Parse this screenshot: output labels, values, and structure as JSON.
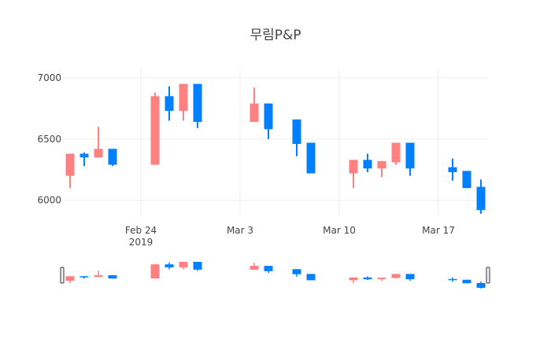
{
  "chart_data": {
    "type": "candlestick",
    "title": "무림P&P",
    "x_ticks": [
      {
        "date": "2019-02-24",
        "label": "Feb 24",
        "sublabel": "2019"
      },
      {
        "date": "2019-03-03",
        "label": "Mar 3"
      },
      {
        "date": "2019-03-10",
        "label": "Mar 10"
      },
      {
        "date": "2019-03-17",
        "label": "Mar 17"
      }
    ],
    "y_ticks": [
      6000,
      6500,
      7000
    ],
    "ylim": [
      5870,
      7070
    ],
    "xlim": [
      "2019-02-18T12:00",
      "2019-03-20T12:00"
    ],
    "grid": true,
    "rangeslider": true,
    "colors": {
      "increasing": "#FF8080",
      "decreasing": "#0080FF"
    },
    "candles": [
      {
        "date": "2019-02-19",
        "open": 6200,
        "high": 6380,
        "low": 6100,
        "close": 6380
      },
      {
        "date": "2019-02-20",
        "open": 6380,
        "high": 6390,
        "low": 6280,
        "close": 6350
      },
      {
        "date": "2019-02-21",
        "open": 6350,
        "high": 6600,
        "low": 6350,
        "close": 6420
      },
      {
        "date": "2019-02-22",
        "open": 6420,
        "high": 6420,
        "low": 6280,
        "close": 6290
      },
      {
        "date": "2019-02-25",
        "open": 6290,
        "high": 6880,
        "low": 6290,
        "close": 6850
      },
      {
        "date": "2019-02-26",
        "open": 6850,
        "high": 6930,
        "low": 6650,
        "close": 6730
      },
      {
        "date": "2019-02-27",
        "open": 6730,
        "high": 6950,
        "low": 6650,
        "close": 6950
      },
      {
        "date": "2019-02-28",
        "open": 6950,
        "high": 6950,
        "low": 6590,
        "close": 6640
      },
      {
        "date": "2019-03-04",
        "open": 6640,
        "high": 6920,
        "low": 6640,
        "close": 6790
      },
      {
        "date": "2019-03-05",
        "open": 6790,
        "high": 6790,
        "low": 6500,
        "close": 6580
      },
      {
        "date": "2019-03-07",
        "open": 6660,
        "high": 6660,
        "low": 6360,
        "close": 6460
      },
      {
        "date": "2019-03-08",
        "open": 6470,
        "high": 6470,
        "low": 6220,
        "close": 6220
      },
      {
        "date": "2019-03-11",
        "open": 6220,
        "high": 6330,
        "low": 6100,
        "close": 6330
      },
      {
        "date": "2019-03-12",
        "open": 6330,
        "high": 6380,
        "low": 6230,
        "close": 6260
      },
      {
        "date": "2019-03-13",
        "open": 6260,
        "high": 6320,
        "low": 6190,
        "close": 6320
      },
      {
        "date": "2019-03-14",
        "open": 6310,
        "high": 6470,
        "low": 6290,
        "close": 6470
      },
      {
        "date": "2019-03-15",
        "open": 6470,
        "high": 6470,
        "low": 6200,
        "close": 6260
      },
      {
        "date": "2019-03-18",
        "open": 6270,
        "high": 6340,
        "low": 6160,
        "close": 6230
      },
      {
        "date": "2019-03-19",
        "open": 6240,
        "high": 6240,
        "low": 6100,
        "close": 6100
      },
      {
        "date": "2019-03-20",
        "open": 6110,
        "high": 6170,
        "low": 5890,
        "close": 5920
      }
    ]
  }
}
